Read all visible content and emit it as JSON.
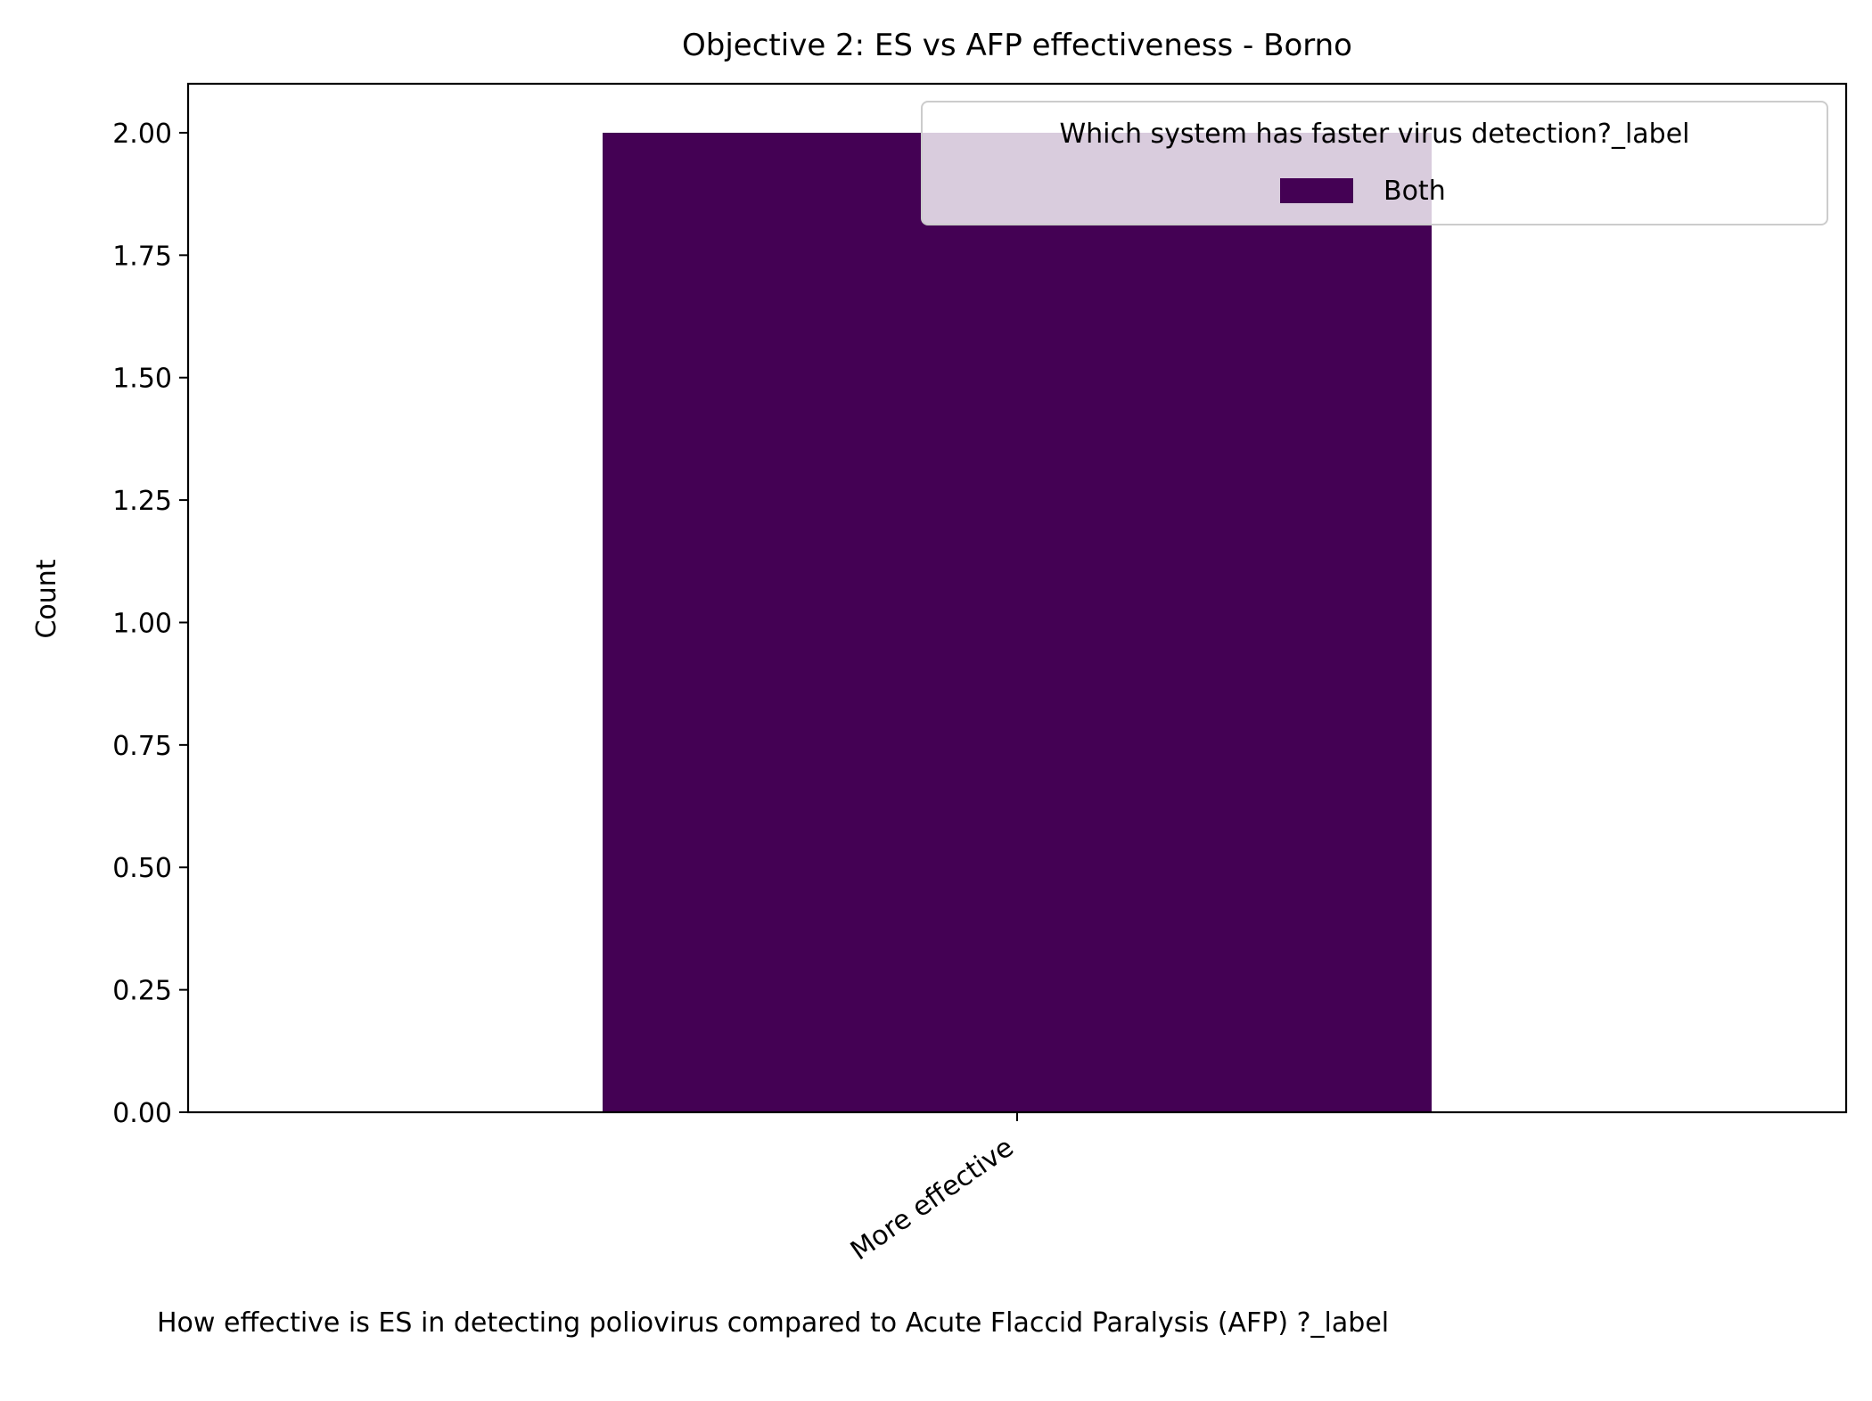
{
  "chart_data": {
    "type": "bar",
    "title": "Objective 2: ES vs AFP effectiveness - Borno",
    "xlabel": "How effective is ES in detecting poliovirus compared to  Acute Flaccid Paralysis (AFP) ?_label",
    "ylabel": "Count",
    "categories": [
      "More effective"
    ],
    "series": [
      {
        "name": "Both",
        "values": [
          2
        ],
        "color": "#440154"
      }
    ],
    "ylim": [
      0,
      2.1
    ],
    "yticks": [
      0,
      0.25,
      0.5,
      0.75,
      1,
      1.25,
      1.5,
      1.75,
      2
    ],
    "ytick_labels": [
      "0.00",
      "0.25",
      "0.50",
      "0.75",
      "1.00",
      "1.25",
      "1.50",
      "1.75",
      "2.00"
    ],
    "legend": {
      "title": "Which system has faster virus detection?_label",
      "placement": "upper right"
    },
    "grid": false
  }
}
